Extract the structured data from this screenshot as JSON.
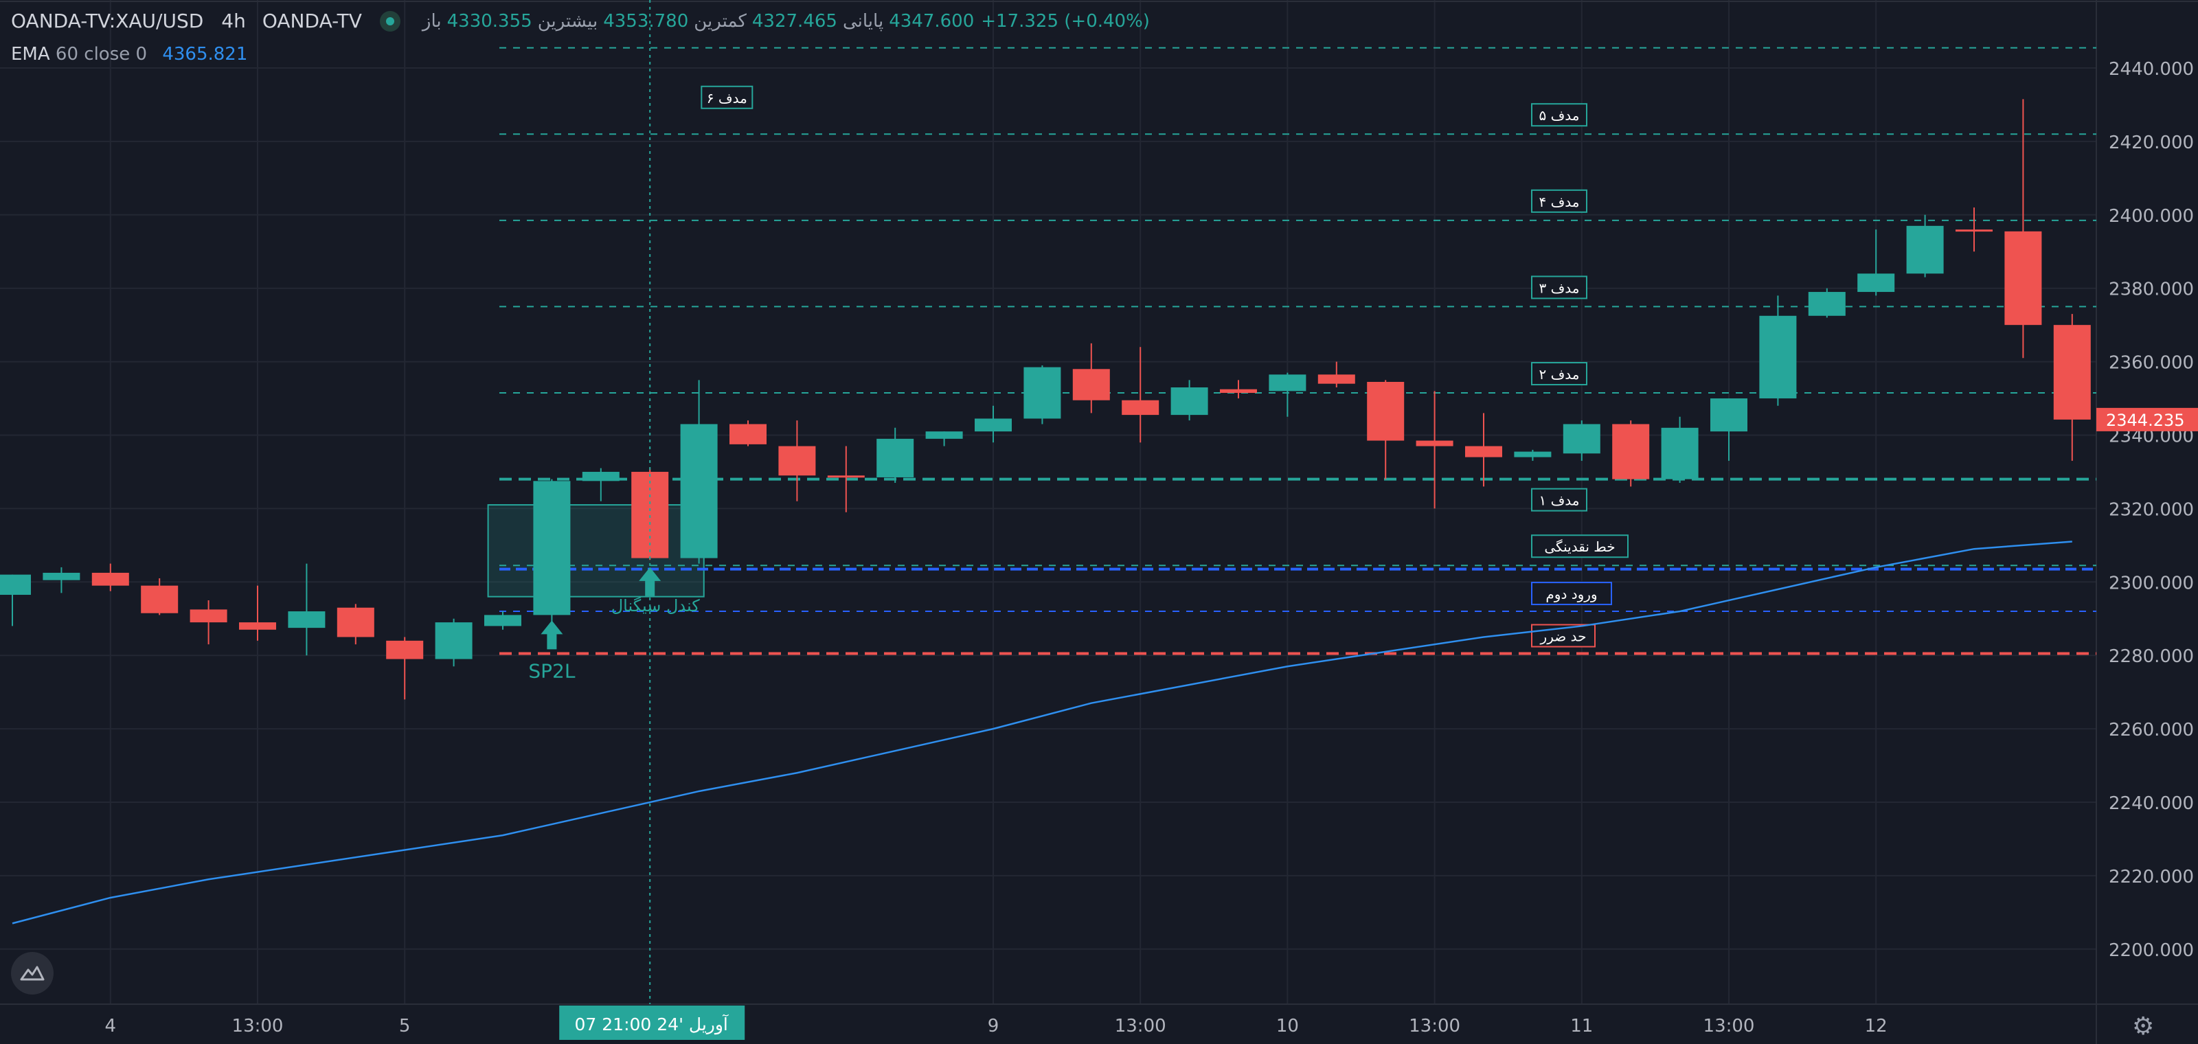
{
  "header": {
    "symbol": "OANDA-TV:XAU/USD",
    "timeframe": "4h",
    "source": "OANDA-TV",
    "open_label": "باز",
    "open": "4330.355",
    "high_label": "بیشترین",
    "high": "4353.780",
    "low_label": "کمترین",
    "low": "4327.465",
    "close_label": "پایانی",
    "close": "4347.600",
    "change": "+17.325 (+0.40%)"
  },
  "indicator": {
    "name": "EMA",
    "params": "60 close 0",
    "value": "4365.821"
  },
  "colors": {
    "background": "#161a25",
    "up": "#26a69a",
    "down": "#ef5350",
    "ema": "#2f8fef",
    "grid": "#232733",
    "target_line": "#26a69a",
    "stop_line": "#ef5350",
    "entry_line": "#2962ff"
  },
  "icons": [
    "tradingview-logo-icon",
    "settings-gear-icon",
    "live-status-dot-icon"
  ],
  "chart_data": {
    "type": "candlestick",
    "ylim": [
      2190,
      2447
    ],
    "y_ticks": [
      "2440.000",
      "2420.000",
      "2400.000",
      "2380.000",
      "2360.000",
      "2340.000",
      "2320.000",
      "2300.000",
      "2280.000",
      "2260.000",
      "2240.000",
      "2220.000",
      "2200.000"
    ],
    "y_tick_values": [
      2440,
      2420,
      2400,
      2380,
      2360,
      2340,
      2320,
      2300,
      2280,
      2260,
      2240,
      2220,
      2200
    ],
    "x_ticks": [
      "4",
      "13:00",
      "5",
      "9",
      "13:00",
      "10",
      "13:00",
      "11",
      "13:00",
      "12"
    ],
    "x_tick_index": [
      2,
      5,
      8,
      20,
      23,
      26,
      29,
      32,
      35,
      38
    ],
    "crosshair_label": "07 آوریل '24   21:00",
    "crosshair_index": 13,
    "last_price": "2344.235",
    "last_price_value": 2344.235,
    "candles": [
      {
        "o": 2296.5,
        "h": 2302.0,
        "l": 2288.0,
        "c": 2302.0
      },
      {
        "o": 2300.5,
        "h": 2304.0,
        "l": 2297.0,
        "c": 2302.5
      },
      {
        "o": 2302.5,
        "h": 2305.0,
        "l": 2297.5,
        "c": 2299.0
      },
      {
        "o": 2299.0,
        "h": 2301.0,
        "l": 2291.0,
        "c": 2291.5
      },
      {
        "o": 2292.5,
        "h": 2295.0,
        "l": 2283.0,
        "c": 2289.0
      },
      {
        "o": 2289.0,
        "h": 2299.0,
        "l": 2284.0,
        "c": 2287.0
      },
      {
        "o": 2287.5,
        "h": 2305.0,
        "l": 2280.0,
        "c": 2292.0
      },
      {
        "o": 2293.0,
        "h": 2294.0,
        "l": 2283.0,
        "c": 2285.0
      },
      {
        "o": 2284.0,
        "h": 2285.0,
        "l": 2268.0,
        "c": 2279.0
      },
      {
        "o": 2279.0,
        "h": 2290.0,
        "l": 2277.0,
        "c": 2289.0
      },
      {
        "o": 2288.0,
        "h": 2292.0,
        "l": 2287.0,
        "c": 2291.0
      },
      {
        "o": 2291.0,
        "h": 2328.0,
        "l": 2288.0,
        "c": 2327.5
      },
      {
        "o": 2327.5,
        "h": 2331.0,
        "l": 2322.0,
        "c": 2330.0
      },
      {
        "o": 2330.0,
        "h": 2331.0,
        "l": 2306.0,
        "c": 2306.5
      },
      {
        "o": 2306.5,
        "h": 2355.0,
        "l": 2305.0,
        "c": 2343.0
      },
      {
        "o": 2343.0,
        "h": 2344.0,
        "l": 2337.0,
        "c": 2337.5
      },
      {
        "o": 2337.0,
        "h": 2344.0,
        "l": 2322.0,
        "c": 2329.0
      },
      {
        "o": 2329.0,
        "h": 2337.0,
        "l": 2319.0,
        "c": 2328.5
      },
      {
        "o": 2328.5,
        "h": 2342.0,
        "l": 2327.0,
        "c": 2339.0
      },
      {
        "o": 2339.0,
        "h": 2341.0,
        "l": 2337.0,
        "c": 2341.0
      },
      {
        "o": 2341.0,
        "h": 2348.0,
        "l": 2338.0,
        "c": 2344.5
      },
      {
        "o": 2344.5,
        "h": 2359.0,
        "l": 2343.0,
        "c": 2358.5
      },
      {
        "o": 2358.0,
        "h": 2365.0,
        "l": 2346.0,
        "c": 2349.5
      },
      {
        "o": 2349.5,
        "h": 2364.0,
        "l": 2338.0,
        "c": 2345.5
      },
      {
        "o": 2345.5,
        "h": 2355.0,
        "l": 2344.0,
        "c": 2353.0
      },
      {
        "o": 2352.5,
        "h": 2355.0,
        "l": 2350.0,
        "c": 2351.5
      },
      {
        "o": 2352.0,
        "h": 2357.0,
        "l": 2345.0,
        "c": 2356.5
      },
      {
        "o": 2356.5,
        "h": 2360.0,
        "l": 2353.0,
        "c": 2354.0
      },
      {
        "o": 2354.5,
        "h": 2355.0,
        "l": 2328.0,
        "c": 2338.5
      },
      {
        "o": 2338.5,
        "h": 2352.0,
        "l": 2320.0,
        "c": 2337.0
      },
      {
        "o": 2337.0,
        "h": 2346.0,
        "l": 2326.0,
        "c": 2334.0
      },
      {
        "o": 2334.0,
        "h": 2336.0,
        "l": 2333.0,
        "c": 2335.5
      },
      {
        "o": 2335.0,
        "h": 2344.0,
        "l": 2333.0,
        "c": 2343.0
      },
      {
        "o": 2343.0,
        "h": 2344.0,
        "l": 2326.0,
        "c": 2328.0
      },
      {
        "o": 2328.0,
        "h": 2345.0,
        "l": 2327.0,
        "c": 2342.0
      },
      {
        "o": 2341.0,
        "h": 2350.0,
        "l": 2333.0,
        "c": 2350.0
      },
      {
        "o": 2350.0,
        "h": 2378.0,
        "l": 2348.0,
        "c": 2372.5
      },
      {
        "o": 2372.5,
        "h": 2380.0,
        "l": 2372.0,
        "c": 2379.0
      },
      {
        "o": 2379.0,
        "h": 2396.0,
        "l": 2378.0,
        "c": 2384.0
      },
      {
        "o": 2384.0,
        "h": 2400.0,
        "l": 2383.0,
        "c": 2397.0
      },
      {
        "o": 2396.0,
        "h": 2402.0,
        "l": 2390.0,
        "c": 2395.5
      },
      {
        "o": 2395.5,
        "h": 2431.5,
        "l": 2361.0,
        "c": 2370.0
      },
      {
        "o": 2370.0,
        "h": 2373.0,
        "l": 2333.0,
        "c": 2344.235
      }
    ],
    "ema": [
      {
        "i": 0,
        "v": 2207
      },
      {
        "i": 2,
        "v": 2214
      },
      {
        "i": 4,
        "v": 2219
      },
      {
        "i": 6,
        "v": 2223
      },
      {
        "i": 8,
        "v": 2227
      },
      {
        "i": 10,
        "v": 2231
      },
      {
        "i": 12,
        "v": 2237
      },
      {
        "i": 14,
        "v": 2243
      },
      {
        "i": 16,
        "v": 2248
      },
      {
        "i": 18,
        "v": 2254
      },
      {
        "i": 20,
        "v": 2260
      },
      {
        "i": 22,
        "v": 2267
      },
      {
        "i": 24,
        "v": 2272
      },
      {
        "i": 26,
        "v": 2277
      },
      {
        "i": 28,
        "v": 2281
      },
      {
        "i": 30,
        "v": 2285
      },
      {
        "i": 32,
        "v": 2288
      },
      {
        "i": 34,
        "v": 2292
      },
      {
        "i": 36,
        "v": 2298
      },
      {
        "i": 38,
        "v": 2304
      },
      {
        "i": 40,
        "v": 2309
      },
      {
        "i": 42,
        "v": 2311
      }
    ],
    "levels": [
      {
        "value": 2445.5,
        "label": "",
        "kind": "target"
      },
      {
        "value": 2422.0,
        "label": "مدف ۵",
        "kind": "target"
      },
      {
        "value": 2398.5,
        "label": "مدف ۴",
        "kind": "target"
      },
      {
        "value": 2375.0,
        "label": "مدف ۳",
        "kind": "target"
      },
      {
        "value": 2351.5,
        "label": "مدف ۲",
        "kind": "target"
      },
      {
        "value": 2328.0,
        "label": "مدف ۱",
        "kind": "target1"
      },
      {
        "value": 2304.5,
        "label": "خط نقدینگی",
        "kind": "liquidity"
      },
      {
        "value": 2303.5,
        "label": "",
        "kind": "entry"
      },
      {
        "value": 2292.0,
        "label": "ورود دوم",
        "kind": "entry2"
      },
      {
        "value": 2280.5,
        "label": "حد ضرر",
        "kind": "stop"
      }
    ],
    "annotations": [
      {
        "text": "مدف ۶",
        "index": 14.5,
        "value": 2432
      },
      {
        "text": "SP2L",
        "index": 11,
        "value": 2274
      },
      {
        "text": "کندل سیگنال",
        "index": 13,
        "value": 2292
      }
    ],
    "signal_zone": {
      "from_index": 9.7,
      "to_index": 14.1,
      "top": 2321,
      "bottom": 2296
    },
    "arrows": [
      {
        "index": 11,
        "value": 2289.5
      },
      {
        "index": 13,
        "value": 2304
      }
    ]
  }
}
